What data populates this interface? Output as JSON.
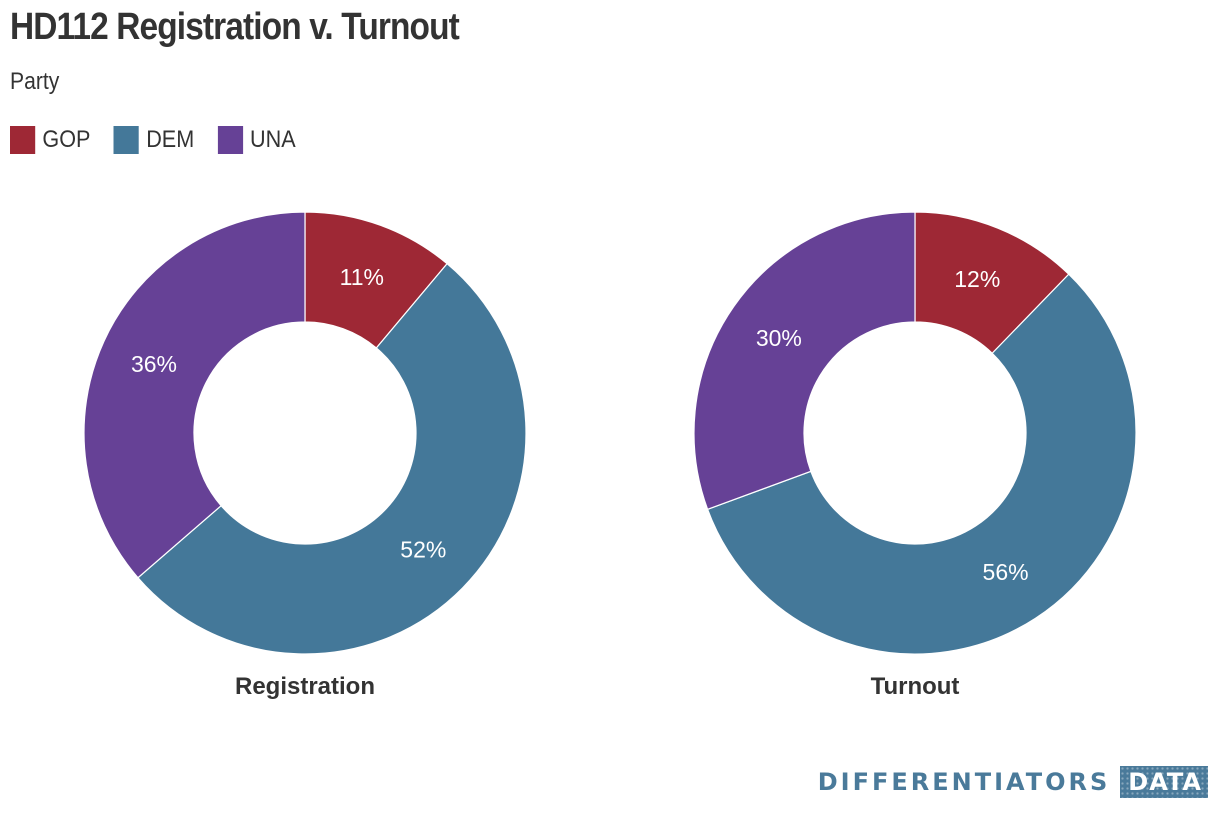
{
  "title": "HD112 Registration v. Turnout",
  "subtitle": "Party",
  "legend": [
    {
      "label": "GOP",
      "color": "#9e2835"
    },
    {
      "label": "DEM",
      "color": "#447899"
    },
    {
      "label": "UNA",
      "color": "#664196"
    }
  ],
  "chart_data": [
    {
      "type": "pie",
      "subtype": "donut",
      "title": "Registration",
      "categories": [
        "GOP",
        "DEM",
        "UNA"
      ],
      "values": [
        11,
        52,
        36
      ],
      "labels": [
        "11%",
        "52%",
        "36%"
      ],
      "colors": [
        "#9e2835",
        "#447899",
        "#664196"
      ]
    },
    {
      "type": "pie",
      "subtype": "donut",
      "title": "Turnout",
      "categories": [
        "GOP",
        "DEM",
        "UNA"
      ],
      "values": [
        12,
        56,
        30
      ],
      "labels": [
        "12%",
        "56%",
        "30%"
      ],
      "colors": [
        "#9e2835",
        "#447899",
        "#664196"
      ]
    }
  ],
  "branding": {
    "word": "DIFFERENTIATORS",
    "box": "DATA"
  }
}
